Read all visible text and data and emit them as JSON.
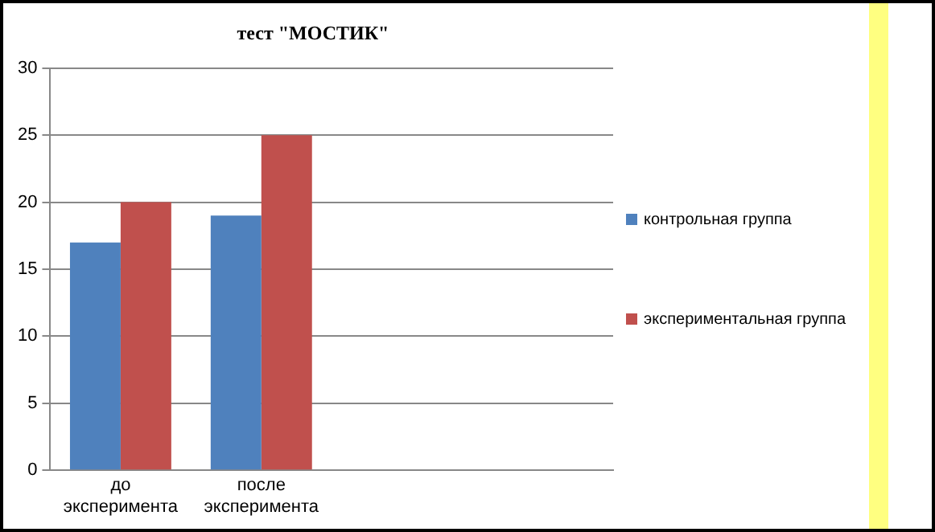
{
  "chart_data": {
    "type": "bar",
    "title": "тест \"МОСТИК\"",
    "categories": [
      "до эксперимента",
      "после эксперимента",
      null,
      null
    ],
    "series": [
      {
        "name": "контрольная группа",
        "color": "#4f81bd",
        "values": [
          17,
          19,
          null,
          null
        ]
      },
      {
        "name": "экспериментальная группа",
        "color": "#c0504d",
        "values": [
          20,
          25,
          null,
          null
        ]
      }
    ],
    "ylim": [
      0,
      30
    ],
    "yticks": [
      0,
      5,
      10,
      15,
      20,
      25,
      30
    ],
    "grid": "y",
    "legend": "right"
  }
}
